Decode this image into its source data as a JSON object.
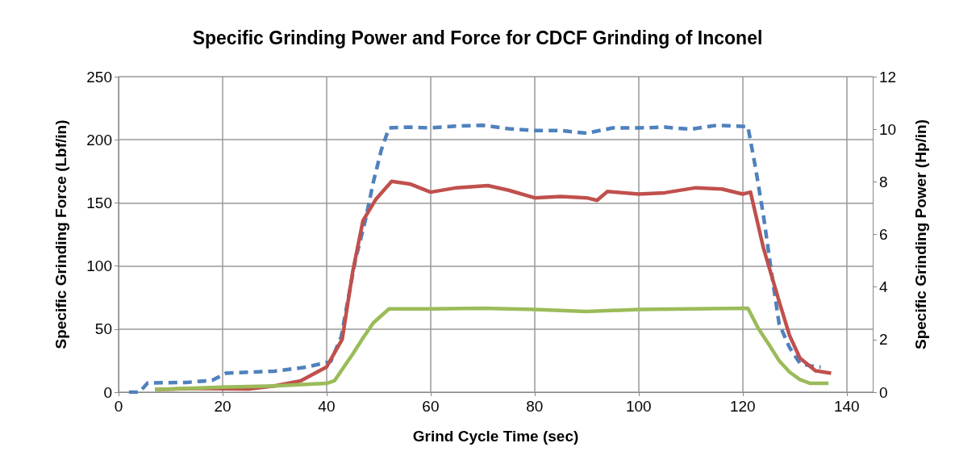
{
  "chart_data": {
    "type": "line",
    "title": "Specific Grinding Power and Force for CDCF Grinding of Inconel",
    "xlabel": "Grind Cycle Time (sec)",
    "ylabel": "Specific Grinding Force (Lbf/in)",
    "y2label": "Specific Grinding Power (Hp/in)",
    "xlim": [
      0,
      145
    ],
    "xticks": [
      0,
      20,
      40,
      60,
      80,
      100,
      120,
      140
    ],
    "ylim": [
      0,
      250
    ],
    "yticks": [
      0,
      50,
      100,
      150,
      200,
      250
    ],
    "y2lim": [
      0,
      12
    ],
    "y2ticks": [
      0,
      2,
      4,
      6,
      8,
      10,
      12
    ],
    "grid": true,
    "marker": "none",
    "series": [
      {
        "color": "#4f81bd",
        "axis": "y2",
        "line_style": "dashed",
        "x": [
          2,
          4,
          5.6,
          13,
          18,
          20.6,
          30,
          36,
          40.8,
          42.8,
          44,
          45.5,
          47.4,
          49,
          50.5,
          52,
          56,
          60,
          65,
          70,
          75,
          80,
          85,
          90,
          95,
          100,
          105,
          110,
          115,
          121,
          122.5,
          124,
          125.5,
          127,
          129,
          131,
          133,
          135
        ],
        "values": [
          0,
          0,
          0.35,
          0.37,
          0.45,
          0.72,
          0.8,
          0.95,
          1.17,
          2.1,
          3.4,
          5,
          6.5,
          8,
          9.2,
          10.05,
          10.08,
          10.05,
          10.12,
          10.15,
          10.02,
          9.95,
          9.95,
          9.85,
          10.05,
          10.05,
          10.08,
          10,
          10.15,
          10.1,
          8.5,
          6.7,
          4.6,
          2.6,
          1.7,
          1.1,
          1,
          0.95
        ]
      },
      {
        "color": "#c0504d",
        "axis": "y",
        "x": [
          7,
          15,
          25,
          30,
          35,
          40,
          43,
          45,
          47,
          49.5,
          52.5,
          56,
          60,
          65,
          71,
          75,
          80,
          85,
          90,
          92,
          94,
          100,
          105,
          111,
          116,
          120,
          121.5,
          124,
          127,
          129,
          131,
          134,
          137
        ],
        "values": [
          2,
          3,
          2.5,
          5,
          9,
          20,
          42,
          95,
          136,
          153,
          167,
          165,
          158.5,
          162,
          163.7,
          160,
          154,
          155,
          154,
          152,
          159,
          157,
          158,
          162,
          161,
          157,
          158.5,
          114,
          72,
          45,
          27,
          17,
          15
        ]
      },
      {
        "color": "#9bbb59",
        "axis": "y",
        "x": [
          7,
          20,
          30,
          40,
          41.5,
          43,
          45,
          47,
          49,
          52,
          60,
          70,
          80,
          90,
          100,
          110,
          121,
          123,
          125,
          127,
          129,
          131,
          133,
          136.5
        ],
        "values": [
          2,
          4,
          5,
          7,
          9,
          18,
          30,
          43,
          55,
          66,
          66,
          66.5,
          65.5,
          64,
          65.5,
          66,
          66.5,
          50.5,
          38,
          25,
          16,
          10,
          7,
          7
        ]
      }
    ]
  }
}
